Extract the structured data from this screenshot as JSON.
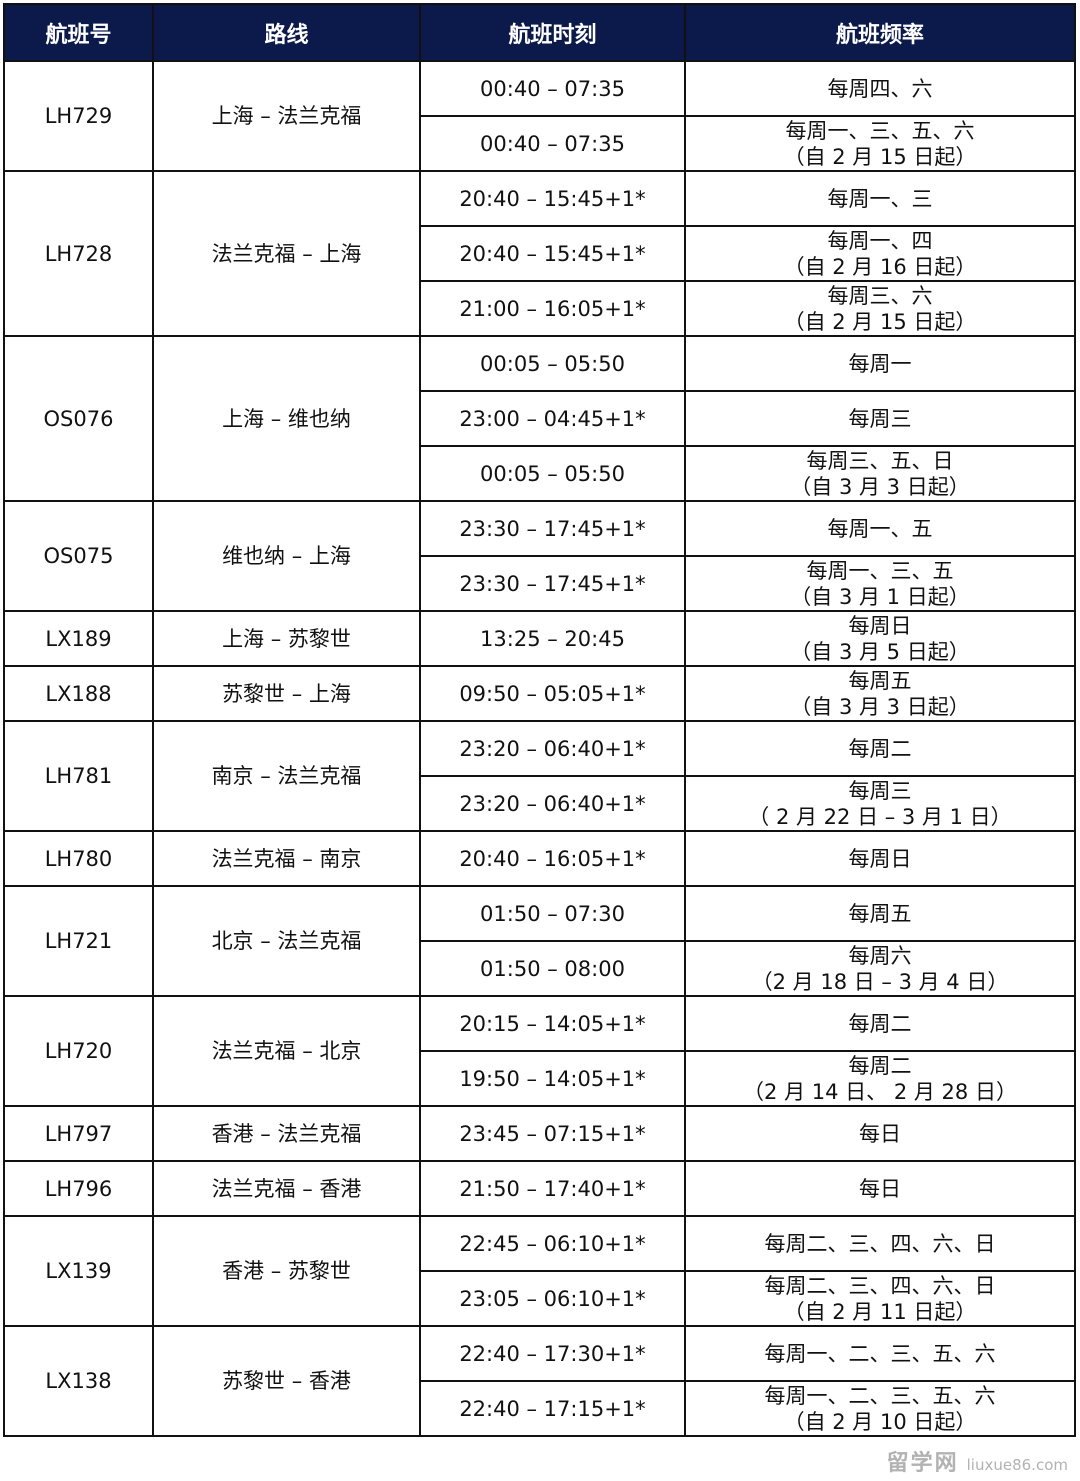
{
  "headers": [
    "航班号",
    "路线",
    "航班时刻",
    "航班频率"
  ],
  "flights": [
    {
      "no": "LH729",
      "route": "上海 – 法兰克福",
      "rows": [
        {
          "time": "00:40 – 07:35",
          "freq": "每周四、六"
        },
        {
          "time": "00:40 – 07:35",
          "freq": "每周一、三、五、六\n（自 2 月 15 日起）"
        }
      ]
    },
    {
      "no": "LH728",
      "route": "法兰克福 – 上海",
      "rows": [
        {
          "time": "20:40 – 15:45+1*",
          "freq": "每周一、三"
        },
        {
          "time": "20:40 – 15:45+1*",
          "freq": "每周一、四\n（自 2 月 16 日起）"
        },
        {
          "time": "21:00 – 16:05+1*",
          "freq": "每周三、六\n（自 2 月 15 日起）"
        }
      ]
    },
    {
      "no": "OS076",
      "route": "上海 – 维也纳",
      "rows": [
        {
          "time": "00:05 – 05:50",
          "freq": "每周一"
        },
        {
          "time": "23:00 – 04:45+1*",
          "freq": "每周三"
        },
        {
          "time": "00:05 – 05:50",
          "freq": "每周三、五、日\n（自 3 月 3 日起）"
        }
      ]
    },
    {
      "no": "OS075",
      "route": "维也纳 – 上海",
      "rows": [
        {
          "time": "23:30 – 17:45+1*",
          "freq": "每周一、五"
        },
        {
          "time": "23:30 – 17:45+1*",
          "freq": "每周一、三、五\n（自 3 月 1 日起）"
        }
      ]
    },
    {
      "no": "LX189",
      "route": "上海 – 苏黎世",
      "rows": [
        {
          "time": "13:25 – 20:45",
          "freq": "每周日\n（自 3 月 5 日起）"
        }
      ]
    },
    {
      "no": "LX188",
      "route": "苏黎世 – 上海",
      "rows": [
        {
          "time": "09:50 – 05:05+1*",
          "freq": "每周五\n（自 3 月 3 日起）"
        }
      ]
    },
    {
      "no": "LH781",
      "route": "南京 – 法兰克福",
      "rows": [
        {
          "time": "23:20 – 06:40+1*",
          "freq": "每周二"
        },
        {
          "time": "23:20 – 06:40+1*",
          "freq": "每周三\n（ 2 月 22 日 – 3 月 1 日）"
        }
      ]
    },
    {
      "no": "LH780",
      "route": "法兰克福 – 南京",
      "rows": [
        {
          "time": "20:40 – 16:05+1*",
          "freq": "每周日"
        }
      ]
    },
    {
      "no": "LH721",
      "route": "北京 – 法兰克福",
      "rows": [
        {
          "time": "01:50 – 07:30",
          "freq": "每周五"
        },
        {
          "time": "01:50 – 08:00",
          "freq": "每周六\n（2 月 18 日 – 3 月 4 日）"
        }
      ]
    },
    {
      "no": "LH720",
      "route": "法兰克福 – 北京",
      "rows": [
        {
          "time": "20:15 – 14:05+1*",
          "freq": "每周二"
        },
        {
          "time": "19:50 – 14:05+1*",
          "freq": "每周二\n（2 月 14 日、 2 月 28 日）"
        }
      ]
    },
    {
      "no": "LH797",
      "route": "香港 – 法兰克福",
      "rows": [
        {
          "time": "23:45 – 07:15+1*",
          "freq": "每日"
        }
      ]
    },
    {
      "no": "LH796",
      "route": "法兰克福 – 香港",
      "rows": [
        {
          "time": "21:50 – 17:40+1*",
          "freq": "每日"
        }
      ]
    },
    {
      "no": "LX139",
      "route": "香港 – 苏黎世",
      "rows": [
        {
          "time": "22:45 – 06:10+1*",
          "freq": "每周二、三、四、六、日"
        },
        {
          "time": "23:05 – 06:10+1*",
          "freq": "每周二、三、四、六、日\n（自 2 月 11 日起）"
        }
      ]
    },
    {
      "no": "LX138",
      "route": "苏黎世 – 香港",
      "rows": [
        {
          "time": "22:40 – 17:30+1*",
          "freq": "每周一、二、三、五、六"
        },
        {
          "time": "22:40 – 17:15+1*",
          "freq": "每周一、二、三、五、六\n（自 2 月 10 日起）"
        }
      ]
    }
  ],
  "watermark": {
    "text": "留学网",
    "url": "liuxue86.com"
  },
  "colors": {
    "header_bg": "#0b1a4a",
    "header_text": "#ffffff"
  }
}
